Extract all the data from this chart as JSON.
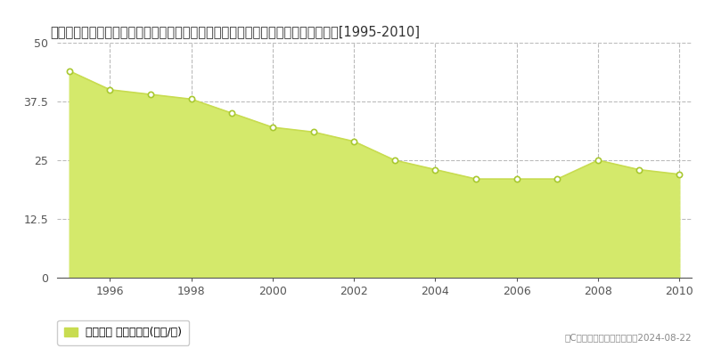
{
  "title": "埼玉県北足立郡伊奈町大字小針内宿字薬師堂根９００番１７　地価公示　地価推移[1995-2010]",
  "years": [
    1995,
    1996,
    1997,
    1998,
    1999,
    2000,
    2001,
    2002,
    2003,
    2004,
    2005,
    2006,
    2007,
    2008,
    2009,
    2010
  ],
  "values": [
    44,
    40,
    39,
    38,
    35,
    32,
    31,
    29,
    25,
    23,
    21,
    21,
    21,
    25,
    23,
    22
  ],
  "fill_color": "#d4e96b",
  "line_color": "#c8dc50",
  "marker_color": "#ffffff",
  "marker_edge_color": "#a8c830",
  "ylim": [
    0,
    50
  ],
  "yticks": [
    0,
    12.5,
    25,
    37.5,
    50
  ],
  "grid_color": "#bbbbbb",
  "background_color": "#ffffff",
  "legend_label": "地価公示 平均坪単価(万円/坪)",
  "legend_color": "#c8dc50",
  "copyright_text": "（C）土地価格ドットコム　2024-08-22",
  "title_fontsize": 10.5,
  "axis_fontsize": 9,
  "legend_fontsize": 9,
  "xtick_years": [
    1996,
    1998,
    2000,
    2002,
    2004,
    2006,
    2008,
    2010
  ]
}
